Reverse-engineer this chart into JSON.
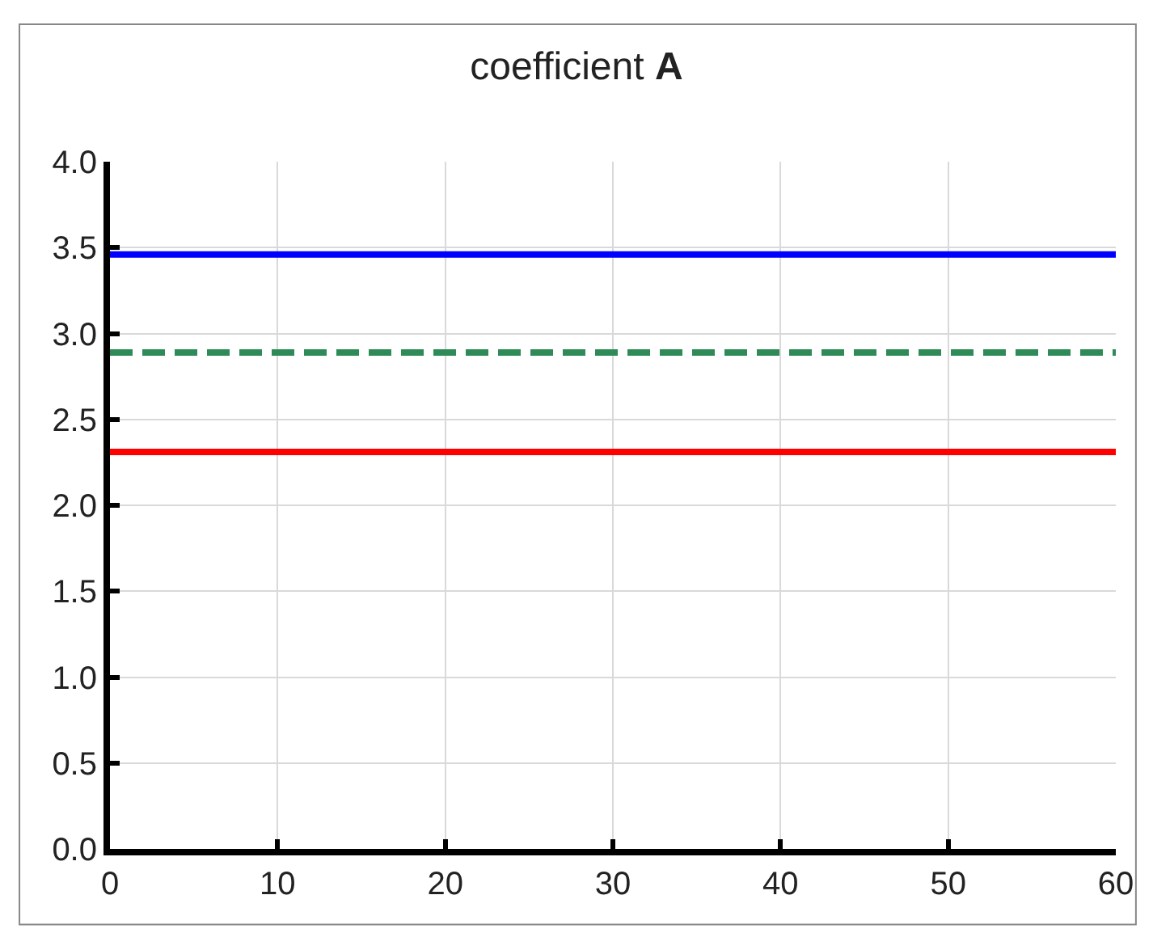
{
  "chart_data": {
    "type": "line",
    "title": "coefficient A",
    "x": [
      0,
      60
    ],
    "series": [
      {
        "color": "#0000ff",
        "values": [
          3.46,
          3.46
        ],
        "line_style": "solid"
      },
      {
        "color": "#2e8b57",
        "values": [
          2.89,
          2.89
        ],
        "line_style": "dashed"
      },
      {
        "color": "#ff0000",
        "values": [
          2.31,
          2.31
        ],
        "line_style": "solid"
      }
    ],
    "xlim": [
      0,
      60
    ],
    "xticks": [
      0,
      10,
      20,
      30,
      40,
      50,
      60
    ],
    "ylim": [
      0,
      4
    ],
    "yticks": [
      {
        "value": 0,
        "label": "0.0"
      },
      {
        "value": 0.5,
        "label": "0.5"
      },
      {
        "value": 1,
        "label": "1.0"
      },
      {
        "value": 1.5,
        "label": "1.5"
      },
      {
        "value": 2,
        "label": "2.0"
      },
      {
        "value": 2.5,
        "label": "2.5"
      },
      {
        "value": 3,
        "label": "3.0"
      },
      {
        "value": 3.5,
        "label": "3.5"
      },
      {
        "value": 4,
        "label": "4.0"
      }
    ],
    "grid": true,
    "marker": "none"
  }
}
